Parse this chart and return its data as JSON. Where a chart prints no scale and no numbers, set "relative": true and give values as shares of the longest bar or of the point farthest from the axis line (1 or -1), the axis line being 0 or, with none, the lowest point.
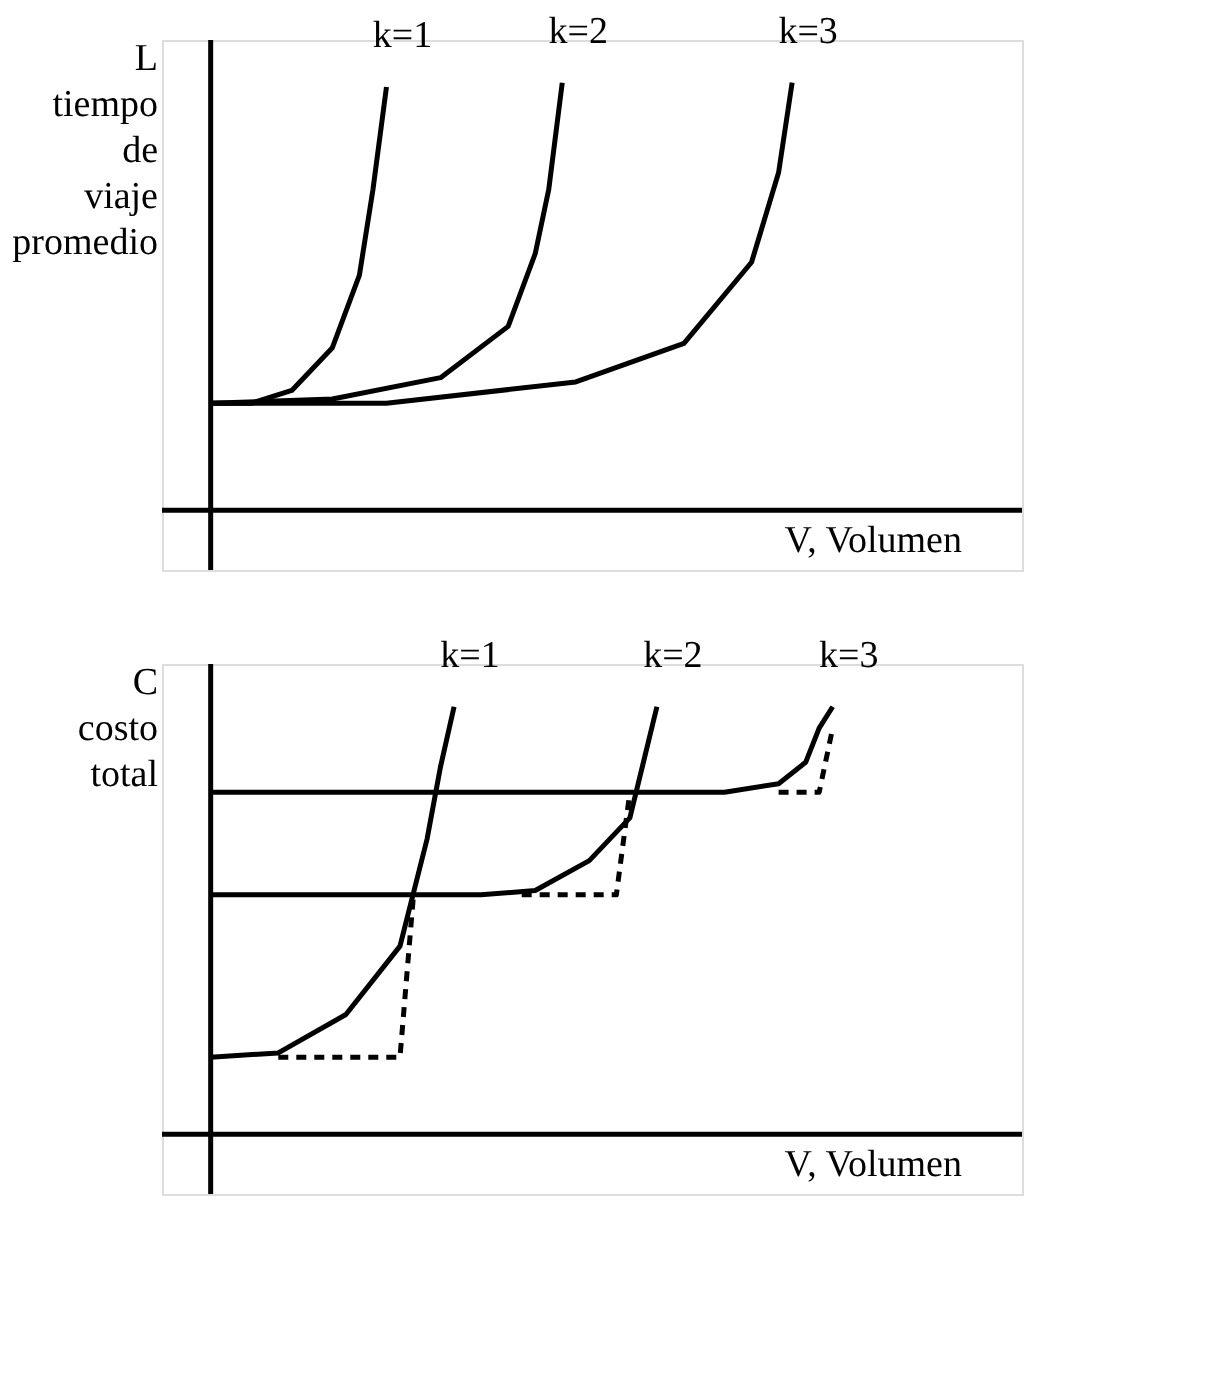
{
  "chart_data": [
    {
      "type": "line",
      "relative": true,
      "ylabel": "L tiempo de viaje promedio",
      "xlabel": "V, Volumen",
      "marker": "none",
      "line_style": "solid",
      "categories": [
        null,
        null,
        null,
        null,
        null,
        null,
        null,
        null,
        null,
        null,
        null,
        null,
        null,
        null,
        null,
        null,
        null,
        null,
        null,
        null,
        null,
        null,
        null,
        null,
        null,
        null,
        null,
        null,
        null,
        null,
        null,
        null,
        null,
        null,
        null,
        null,
        null,
        null,
        null,
        null,
        null,
        null,
        null,
        null,
        null,
        null,
        null,
        null,
        null,
        null,
        null,
        null,
        null,
        null,
        null,
        null,
        null,
        null,
        null,
        null,
        null
      ],
      "series": [
        {
          "name": "k=1",
          "color": "#000000",
          "values": [
            0.25,
            null,
            null,
            0.25,
            null,
            null,
            0.28,
            null,
            null,
            0.38,
            null,
            0.55,
            0.75,
            0.99,
            null,
            null,
            null,
            null,
            null,
            null,
            null,
            null,
            null,
            null,
            null,
            null,
            null,
            null,
            null,
            null,
            null,
            null,
            null,
            null,
            null,
            null,
            null,
            null,
            null,
            null,
            null,
            null,
            null,
            null,
            null,
            null,
            null,
            null,
            null,
            null,
            null,
            null,
            null,
            null,
            null,
            null,
            null,
            null,
            null,
            null,
            null
          ]
        },
        {
          "name": "k=2",
          "color": "#000000",
          "values": [
            0.25,
            null,
            null,
            null,
            null,
            null,
            null,
            null,
            null,
            0.26,
            null,
            null,
            null,
            null,
            null,
            null,
            null,
            0.31,
            null,
            null,
            null,
            null,
            0.43,
            null,
            0.6,
            0.75,
            1.0,
            null,
            null,
            null,
            null,
            null,
            null,
            null,
            null,
            null,
            null,
            null,
            null,
            null,
            null,
            null,
            null,
            null,
            null,
            null,
            null,
            null,
            null,
            null,
            null,
            null,
            null,
            null,
            null,
            null,
            null,
            null,
            null,
            null,
            null
          ]
        },
        {
          "name": "k=3",
          "color": "#000000",
          "values": [
            0.25,
            null,
            null,
            null,
            null,
            null,
            null,
            null,
            null,
            null,
            null,
            null,
            null,
            0.25,
            null,
            null,
            null,
            null,
            null,
            null,
            null,
            null,
            null,
            null,
            null,
            null,
            null,
            0.3,
            null,
            null,
            null,
            null,
            null,
            null,
            null,
            0.39,
            null,
            null,
            null,
            null,
            0.58,
            null,
            0.79,
            1.0,
            null,
            null,
            null,
            null,
            null,
            null,
            null,
            null,
            null,
            null,
            null,
            null,
            null,
            null,
            null,
            null,
            null
          ]
        }
      ]
    },
    {
      "type": "line",
      "relative": true,
      "ylabel": "C costo total",
      "xlabel": "V, Volumen",
      "marker": "none",
      "line_style": "solid",
      "categories": [
        null,
        null,
        null,
        null,
        null,
        null,
        null,
        null,
        null,
        null,
        null,
        null,
        null,
        null,
        null,
        null,
        null,
        null,
        null,
        null,
        null,
        null,
        null,
        null,
        null,
        null,
        null,
        null,
        null,
        null,
        null,
        null,
        null,
        null,
        null,
        null,
        null,
        null,
        null,
        null,
        null,
        null,
        null,
        null,
        null,
        null,
        null,
        null,
        null,
        null,
        null,
        null,
        null,
        null,
        null,
        null,
        null,
        null,
        null,
        null,
        null
      ],
      "series": [
        {
          "name": "k=1",
          "color": "#000000",
          "values": [
            0.18,
            null,
            null,
            null,
            null,
            0.19,
            null,
            null,
            null,
            null,
            0.28,
            null,
            null,
            null,
            0.44,
            null,
            0.69,
            0.86,
            1.0,
            null,
            null,
            null,
            null,
            null,
            null,
            null,
            null,
            null,
            null,
            null,
            null,
            null,
            null,
            null,
            null,
            null,
            null,
            null,
            null,
            null,
            null,
            null,
            null,
            null,
            null,
            null,
            null,
            null,
            null,
            null,
            null,
            null,
            null,
            null,
            null,
            null,
            null,
            null,
            null,
            null,
            null
          ]
        },
        {
          "name": "k=2",
          "color": "#000000",
          "values": [
            0.56,
            null,
            null,
            null,
            null,
            null,
            null,
            null,
            null,
            null,
            null,
            null,
            null,
            null,
            null,
            null,
            null,
            null,
            null,
            null,
            0.56,
            null,
            null,
            null,
            0.57,
            null,
            null,
            null,
            0.64,
            null,
            null,
            0.74,
            0.87,
            1.0,
            null,
            null,
            null,
            null,
            null,
            null,
            null,
            null,
            null,
            null,
            null,
            null,
            null,
            null,
            null,
            null,
            null,
            null,
            null,
            null,
            null,
            null,
            null,
            null,
            null,
            null,
            null
          ]
        },
        {
          "name": "k=3",
          "color": "#000000",
          "values": [
            0.8,
            null,
            null,
            null,
            null,
            null,
            null,
            null,
            null,
            null,
            null,
            null,
            null,
            null,
            null,
            null,
            null,
            null,
            null,
            null,
            null,
            null,
            null,
            null,
            null,
            null,
            null,
            null,
            null,
            null,
            null,
            null,
            null,
            null,
            null,
            null,
            null,
            null,
            0.8,
            null,
            null,
            null,
            0.82,
            null,
            0.87,
            0.95,
            1.0,
            null,
            null,
            null,
            null,
            null,
            null,
            null,
            null,
            null,
            null,
            null,
            null,
            null,
            null
          ]
        },
        {
          "color": "#000000",
          "line_style": "dashed",
          "values": [
            null,
            null,
            null,
            null,
            null,
            0.18,
            null,
            null,
            null,
            null,
            null,
            null,
            null,
            null,
            0.18,
            0.56,
            null,
            null,
            null,
            null,
            null,
            null,
            null,
            null,
            null,
            null,
            null,
            null,
            null,
            null,
            null,
            null,
            null,
            null,
            null,
            null,
            null,
            null,
            null,
            null,
            null,
            null,
            null,
            null,
            null,
            null,
            null,
            null,
            null,
            null,
            null,
            null,
            null,
            null,
            null,
            null,
            null,
            null,
            null,
            null,
            null
          ]
        },
        {
          "color": "#000000",
          "line_style": "dashed",
          "values": [
            null,
            null,
            null,
            null,
            null,
            null,
            null,
            null,
            null,
            null,
            null,
            null,
            null,
            null,
            null,
            null,
            null,
            null,
            null,
            null,
            null,
            null,
            null,
            0.56,
            null,
            null,
            null,
            null,
            null,
            null,
            0.56,
            0.8,
            null,
            null,
            null,
            null,
            null,
            null,
            null,
            null,
            null,
            null,
            null,
            null,
            null,
            null,
            null,
            null,
            null,
            null,
            null,
            null,
            null,
            null,
            null,
            null,
            null,
            null,
            null,
            null,
            null
          ]
        },
        {
          "color": "#000000",
          "line_style": "dashed",
          "values": [
            null,
            null,
            null,
            null,
            null,
            null,
            null,
            null,
            null,
            null,
            null,
            null,
            null,
            null,
            null,
            null,
            null,
            null,
            null,
            null,
            null,
            null,
            null,
            null,
            null,
            null,
            null,
            null,
            null,
            null,
            null,
            null,
            null,
            null,
            null,
            null,
            null,
            null,
            null,
            null,
            null,
            null,
            0.8,
            null,
            null,
            0.8,
            0.95,
            null,
            null,
            null,
            null,
            null,
            null,
            null,
            null,
            null,
            null,
            null,
            null,
            null,
            null
          ]
        }
      ]
    }
  ]
}
